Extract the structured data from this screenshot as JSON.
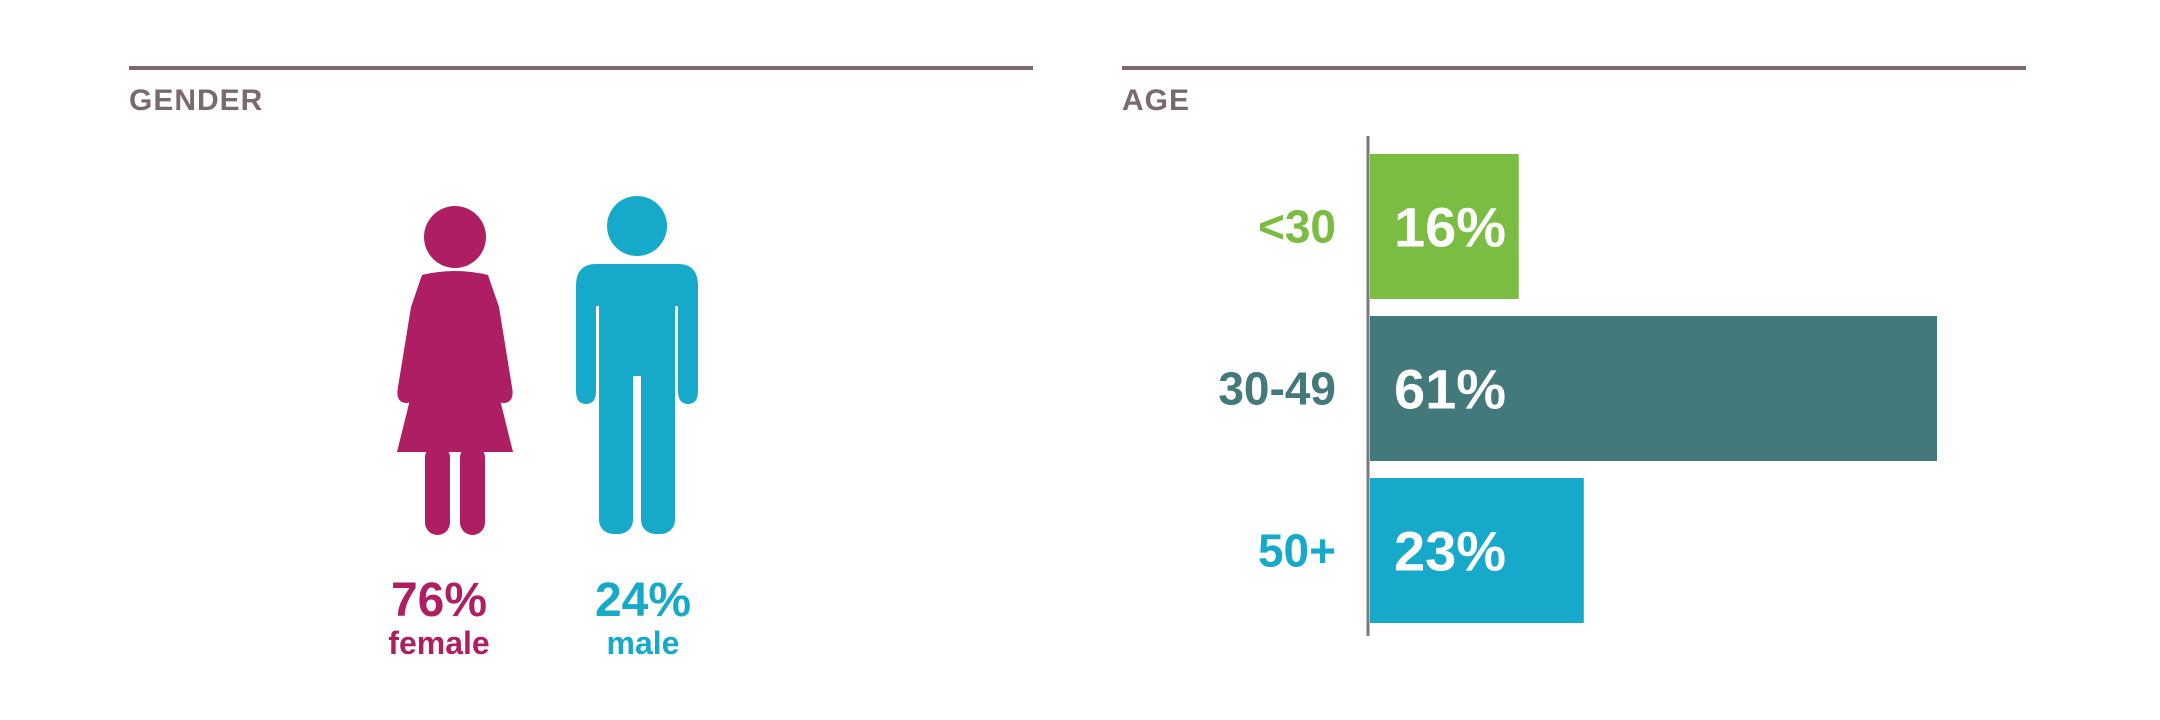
{
  "colors": {
    "female": "#ad1e63",
    "male": "#17a9ca",
    "under30": "#7bbd42",
    "age30to49": "#43797a",
    "over50": "#17a9ca",
    "rule": "#7b6a6c",
    "axis": "#7b7b7b"
  },
  "gender": {
    "title": "GENDER",
    "female": {
      "icon": "female-person-icon",
      "value": "76%",
      "label": "female"
    },
    "male": {
      "icon": "male-person-icon",
      "value": "24%",
      "label": "male"
    }
  },
  "age": {
    "title": "AGE"
  },
  "chart_data": {
    "type": "bar",
    "orientation": "horizontal",
    "categories": [
      "<30",
      "30-49",
      "50+"
    ],
    "values": [
      16,
      61,
      23
    ],
    "data_labels": [
      "16%",
      "61%",
      "23%"
    ],
    "colors": [
      "#7bbd42",
      "#43797a",
      "#17a9ca"
    ],
    "title": "AGE",
    "xlabel": "",
    "ylabel": "",
    "xlim": [
      0,
      61
    ],
    "grid": false,
    "legend": "none"
  }
}
